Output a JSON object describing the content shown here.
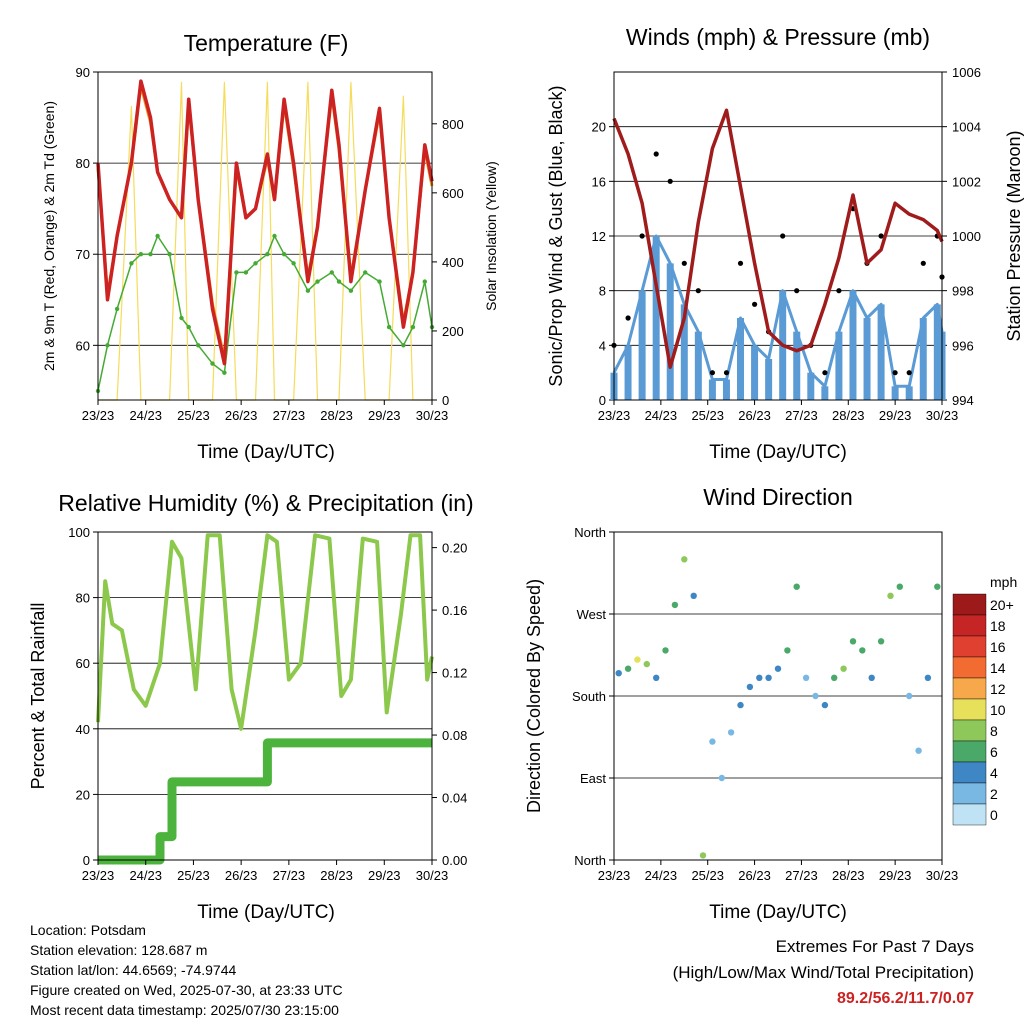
{
  "colors": {
    "temp": "#cc2222",
    "temp9m": "#f0931e",
    "dewpoint": "#44aa33",
    "solar": "#f5dc5a",
    "wind": "#5a9bd5",
    "gust": "#000000",
    "pressure": "#a01c1c",
    "rh": "#8cc84b",
    "precip": "#4cb43c"
  },
  "x_ticks": [
    "23/23",
    "24/23",
    "25/23",
    "26/23",
    "27/23",
    "28/23",
    "29/23",
    "30/23"
  ],
  "x_label": "Time (Day/UTC)",
  "panels": {
    "temperature": {
      "title": "Temperature (F)",
      "ylabel_left": "2m & 9m T (Red, Orange) & 2m Td (Green)",
      "ylabel_right": "Solar Insolation (Yellow)",
      "y_ticks_left": [
        "60",
        "70",
        "80",
        "90"
      ],
      "y_ticks_right": [
        "0",
        "200",
        "400",
        "600",
        "800"
      ]
    },
    "winds": {
      "title": "Winds (mph) & Pressure (mb)",
      "ylabel_left": "Sonic/Prop Wind & Gust (Blue, Black)",
      "ylabel_right": "Station Pressure (Maroon)",
      "y_ticks_left": [
        "0",
        "4",
        "8",
        "12",
        "16",
        "20"
      ],
      "y_ticks_right": [
        "994",
        "996",
        "998",
        "1000",
        "1002",
        "1004",
        "1006"
      ]
    },
    "humidity": {
      "title": "Relative Humidity (%) & Precipitation (in)",
      "ylabel_left": "Percent & Total Rainfall",
      "y_ticks_left": [
        "0",
        "20",
        "40",
        "60",
        "80",
        "100"
      ],
      "y_ticks_right": [
        "0.00",
        "0.04",
        "0.08",
        "0.12",
        "0.16",
        "0.20"
      ]
    },
    "direction": {
      "title": "Wind Direction",
      "ylabel_left": "Direction (Colored By Speed)",
      "y_ticks_left": [
        "North",
        "East",
        "South",
        "West",
        "North"
      ],
      "legend_title": "mph",
      "legend_labels": [
        "20+",
        "18",
        "16",
        "14",
        "12",
        "10",
        "8",
        "6",
        "4",
        "2",
        "0"
      ],
      "legend_colors": [
        "#9c1a1a",
        "#c62525",
        "#e04030",
        "#f26b30",
        "#f6a84a",
        "#e6e05a",
        "#8ec85a",
        "#4aa868",
        "#3e86c4",
        "#7ab8e4",
        "#bfe3f5"
      ]
    }
  },
  "info": {
    "location": "Location: Potsdam",
    "elevation": "Station elevation: 128.687 m",
    "latlon": "Station lat/lon: 44.6569; -74.9744",
    "created": "Figure created on Wed, 2025-07-30, at 23:33 UTC",
    "recent": "Most recent data timestamp: 2025/07/30 23:15:00"
  },
  "extremes": {
    "line1": "Extremes For Past 7 Days",
    "line2": "(High/Low/Max Wind/Total Precipitation)",
    "values": "89.2/56.2/11.7/0.07"
  },
  "chart_data": [
    {
      "type": "line",
      "title": "Temperature (F)",
      "xlabel": "Time (Day/UTC)",
      "ylabel": "2m & 9m T (Red, Orange) & 2m Td (Green)",
      "y2label": "Solar Insolation (Yellow)",
      "xlim": [
        23,
        30
      ],
      "ylim": [
        54,
        90
      ],
      "y2lim": [
        0,
        950
      ],
      "x": [
        23.0,
        23.2,
        23.4,
        23.7,
        23.9,
        24.1,
        24.25,
        24.5,
        24.75,
        24.9,
        25.1,
        25.4,
        25.65,
        25.9,
        26.1,
        26.3,
        26.55,
        26.7,
        26.9,
        27.1,
        27.4,
        27.6,
        27.9,
        28.05,
        28.3,
        28.6,
        28.9,
        29.1,
        29.4,
        29.6,
        29.85,
        30.0
      ],
      "series": [
        {
          "name": "2m T",
          "values": [
            80,
            65,
            72,
            80,
            89,
            85,
            79,
            76,
            74,
            87,
            76,
            64,
            58,
            80,
            74,
            75,
            81,
            76,
            87,
            80,
            67,
            73,
            88,
            82,
            67,
            77,
            86,
            74,
            62,
            68,
            82,
            78
          ]
        },
        {
          "name": "9m T",
          "values": [
            79.5,
            65.5,
            72,
            80,
            88.5,
            84.5,
            79,
            76,
            74,
            86.5,
            76,
            64.5,
            58.5,
            79.5,
            74,
            75,
            80.5,
            76,
            86.5,
            79.5,
            67.5,
            73,
            87.5,
            81.5,
            67.5,
            77,
            85.5,
            74,
            62.5,
            68,
            81.5,
            77.5
          ]
        },
        {
          "name": "2m Td",
          "values": [
            55,
            60,
            64,
            69,
            70,
            70,
            72,
            70,
            63,
            62,
            60,
            58,
            57,
            68,
            68,
            69,
            70,
            72,
            70,
            69,
            66,
            67,
            68,
            67,
            66,
            68,
            67,
            62,
            60,
            62,
            67,
            62
          ]
        },
        {
          "name": "Solar",
          "values": [
            0,
            0,
            0,
            850,
            0,
            0,
            0,
            0,
            920,
            0,
            0,
            0,
            920,
            0,
            0,
            0,
            920,
            0,
            0,
            0,
            920,
            0,
            0,
            0,
            920,
            0,
            0,
            0,
            880,
            0,
            0,
            0
          ]
        }
      ]
    },
    {
      "type": "line",
      "title": "Winds (mph) & Pressure (mb)",
      "xlabel": "Time (Day/UTC)",
      "ylabel": "Sonic/Prop Wind & Gust (Blue, Black)",
      "y2label": "Station Pressure (Maroon)",
      "xlim": [
        23,
        30
      ],
      "ylim": [
        0,
        24
      ],
      "y2lim": [
        994,
        1006
      ],
      "x": [
        23.0,
        23.3,
        23.6,
        23.9,
        24.2,
        24.5,
        24.8,
        25.1,
        25.4,
        25.7,
        26.0,
        26.3,
        26.6,
        26.9,
        27.2,
        27.5,
        27.8,
        28.1,
        28.4,
        28.7,
        29.0,
        29.3,
        29.6,
        29.9,
        30.0
      ],
      "series": [
        {
          "name": "Wind",
          "values": [
            2,
            4,
            8,
            12,
            10,
            7,
            5,
            1.5,
            1.5,
            6,
            4,
            3,
            8,
            5,
            2,
            1,
            5,
            8,
            6,
            7,
            1,
            1,
            6,
            7,
            5
          ]
        },
        {
          "name": "Gust",
          "values": [
            4,
            6,
            12,
            18,
            16,
            10,
            8,
            2,
            2,
            10,
            7,
            5,
            12,
            8,
            4,
            2,
            8,
            14,
            10,
            12,
            2,
            2,
            10,
            12,
            9
          ]
        },
        {
          "name": "Pressure",
          "values": [
            1004.3,
            1003,
            1001.2,
            998.2,
            995.2,
            997,
            1000.5,
            1003.2,
            1004.6,
            1001.8,
            999,
            996.5,
            996,
            995.8,
            996,
            997.5,
            999.2,
            1001.5,
            999,
            999.5,
            1001.2,
            1000.8,
            1000.6,
            1000.2,
            999.8
          ]
        }
      ]
    },
    {
      "type": "line",
      "title": "Relative Humidity (%) & Precipitation (in)",
      "xlabel": "Time (Day/UTC)",
      "ylabel": "Percent & Total Rainfall",
      "xlim": [
        23,
        30
      ],
      "ylim": [
        0,
        100
      ],
      "y2lim": [
        0,
        0.21
      ],
      "x": [
        23.0,
        23.15,
        23.3,
        23.5,
        23.75,
        24.0,
        24.3,
        24.55,
        24.75,
        25.05,
        25.3,
        25.55,
        25.8,
        26.0,
        26.3,
        26.55,
        26.75,
        27.0,
        27.25,
        27.55,
        27.85,
        28.1,
        28.3,
        28.55,
        28.85,
        29.05,
        29.35,
        29.55,
        29.75,
        29.9,
        30.0
      ],
      "series": [
        {
          "name": "RH",
          "values": [
            42,
            85,
            72,
            70,
            52,
            47,
            60,
            97,
            92,
            52,
            99,
            99,
            52,
            40,
            70,
            99,
            97,
            55,
            60,
            99,
            98,
            50,
            55,
            98,
            97,
            45,
            75,
            99,
            99,
            55,
            62
          ]
        },
        {
          "name": "Precip",
          "values": [
            0,
            0,
            0,
            0,
            0,
            0,
            0.015,
            0.05,
            0.05,
            0.05,
            0.05,
            0.05,
            0.05,
            0.05,
            0.05,
            0.075,
            0.075,
            0.075,
            0.075,
            0.075,
            0.075,
            0.075,
            0.075,
            0.075,
            0.075,
            0.075,
            0.075,
            0.075,
            0.075,
            0.075,
            0.075
          ]
        }
      ]
    },
    {
      "type": "scatter",
      "title": "Wind Direction",
      "xlabel": "Time (Day/UTC)",
      "ylabel": "Direction (Colored By Speed)",
      "xlim": [
        23,
        30
      ],
      "ylim": [
        0,
        360
      ],
      "x": [
        23.1,
        23.3,
        23.5,
        23.7,
        23.9,
        24.1,
        24.3,
        24.5,
        24.7,
        24.9,
        25.1,
        25.3,
        25.5,
        25.7,
        25.9,
        26.1,
        26.3,
        26.5,
        26.7,
        26.9,
        27.1,
        27.3,
        27.5,
        27.7,
        27.9,
        28.1,
        28.3,
        28.5,
        28.7,
        28.9,
        29.1,
        29.3,
        29.5,
        29.7,
        29.9
      ],
      "values": [
        205,
        210,
        220,
        215,
        200,
        230,
        280,
        330,
        290,
        5,
        130,
        90,
        140,
        170,
        190,
        200,
        200,
        210,
        230,
        300,
        200,
        180,
        170,
        200,
        210,
        240,
        230,
        200,
        240,
        290,
        300,
        180,
        120,
        200,
        300
      ],
      "speeds": [
        4,
        5,
        10,
        8,
        4,
        5,
        6,
        7,
        3,
        8,
        1,
        1,
        2,
        3,
        4,
        4,
        3,
        4,
        5,
        6,
        2,
        2,
        3,
        5,
        8,
        6,
        5,
        4,
        6,
        8,
        5,
        1,
        1,
        4,
        6
      ]
    }
  ]
}
